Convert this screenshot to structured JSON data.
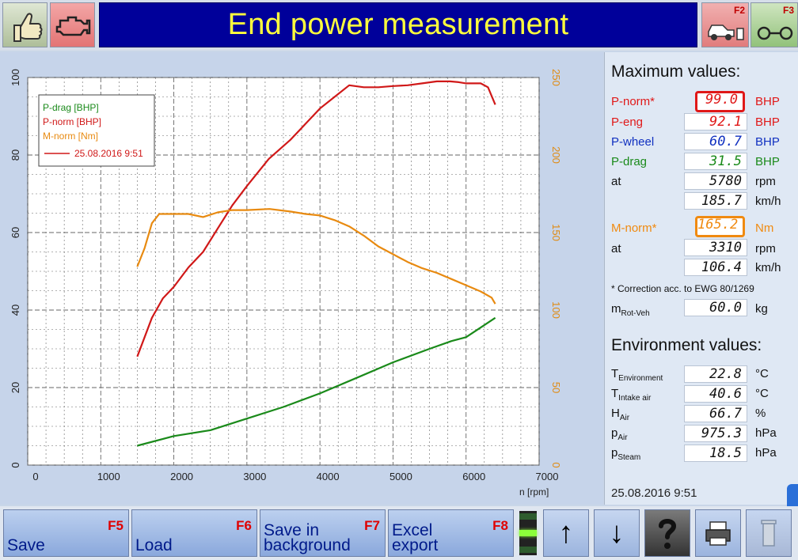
{
  "header": {
    "title": "End power measurement",
    "f2_key": "F2",
    "f3_key": "F3"
  },
  "chart": {
    "xlabel": "n [rpm]",
    "legend_items": [
      {
        "label": "P-drag [BHP]",
        "color": "#1a8a1a"
      },
      {
        "label": "P-norm [BHP]",
        "color": "#d01818"
      },
      {
        "label": "M-norm [Nm]",
        "color": "#e88a10"
      },
      {
        "label": "25.08.2016 9:51",
        "color": "#d01818"
      }
    ]
  },
  "chart_data": {
    "type": "line",
    "xlabel": "n [rpm]",
    "ylabel": "",
    "xlim": [
      0,
      7000
    ],
    "ylim_left": [
      0,
      100
    ],
    "ylim_right": [
      0,
      250
    ],
    "x_ticks": [
      0,
      1000,
      2000,
      3000,
      4000,
      5000,
      6000,
      7000
    ],
    "y_left_ticks": [
      0,
      20,
      40,
      60,
      80,
      100
    ],
    "y_right_ticks": [
      0,
      50,
      100,
      150,
      200,
      250
    ],
    "grid": true,
    "legend_position": "top-left",
    "series": [
      {
        "name": "P-norm [BHP]",
        "axis": "left",
        "color": "#d01818",
        "x": [
          1500,
          1700,
          1850,
          2000,
          2200,
          2400,
          2600,
          2800,
          3000,
          3300,
          3600,
          3800,
          4000,
          4200,
          4400,
          4600,
          4800,
          5000,
          5200,
          5400,
          5600,
          5780,
          5900,
          6000,
          6200,
          6300,
          6400
        ],
        "y": [
          28,
          38,
          43,
          46,
          51,
          55,
          61,
          67,
          72,
          79,
          84,
          88,
          92,
          95,
          98,
          97.5,
          97.5,
          97.8,
          98,
          98.5,
          99,
          99,
          98.8,
          98.5,
          98.5,
          97.5,
          93
        ]
      },
      {
        "name": "M-norm [Nm]",
        "axis": "right",
        "color": "#e88a10",
        "x": [
          1500,
          1600,
          1700,
          1800,
          2000,
          2200,
          2400,
          2600,
          2800,
          3000,
          3310,
          3600,
          3800,
          4000,
          4200,
          4400,
          4600,
          4800,
          5000,
          5200,
          5400,
          5600,
          5800,
          6000,
          6200,
          6350,
          6400
        ],
        "y": [
          128,
          140,
          156,
          162,
          162,
          162,
          160,
          163,
          164.5,
          164.5,
          165.2,
          163.5,
          162,
          161,
          158,
          154,
          148,
          141,
          136,
          131,
          127,
          124,
          120,
          116,
          112,
          108,
          104
        ]
      },
      {
        "name": "P-drag [BHP]",
        "axis": "left",
        "color": "#1a8a1a",
        "x": [
          1500,
          2000,
          2500,
          3000,
          3500,
          4000,
          4500,
          5000,
          5500,
          5800,
          6000,
          6200,
          6400
        ],
        "y": [
          5,
          7.5,
          9,
          12,
          15,
          18.5,
          22.5,
          26.5,
          30,
          32,
          33,
          35.5,
          38
        ]
      }
    ]
  },
  "max_values": {
    "heading": "Maximum values:",
    "rows": [
      {
        "label": "P-norm*",
        "value": "99.0",
        "unit": "BHP",
        "color": "#e01818",
        "value_color": "#e01818"
      },
      {
        "label": "P-eng",
        "value": "92.1",
        "unit": "BHP",
        "color": "#e01818",
        "value_color": "#e01818"
      },
      {
        "label": "P-wheel",
        "value": "60.7",
        "unit": "BHP",
        "color": "#1030c0",
        "value_color": "#1030c0"
      },
      {
        "label": "P-drag",
        "value": "31.5",
        "unit": "BHP",
        "color": "#1a8a1a",
        "value_color": "#1a8a1a"
      },
      {
        "label": "at",
        "value": "5780",
        "unit": "rpm",
        "color": "#111",
        "value_color": "#111"
      },
      {
        "label": "",
        "value": "185.7",
        "unit": "km/h",
        "color": "#111",
        "value_color": "#111"
      }
    ],
    "torque_rows": [
      {
        "label": "M-norm*",
        "value": "165.2",
        "unit": "Nm",
        "color": "#f08a10",
        "value_color": "#f08a10"
      },
      {
        "label": "at",
        "value": "3310",
        "unit": "rpm",
        "color": "#111",
        "value_color": "#111"
      },
      {
        "label": "",
        "value": "106.4",
        "unit": "km/h",
        "color": "#111",
        "value_color": "#111"
      }
    ],
    "note": "* Correction acc. to EWG 80/1269",
    "rot_label": "m",
    "rot_sub": "Rot-Veh",
    "rot_value": "60.0",
    "rot_unit": "kg"
  },
  "env_values": {
    "heading": "Environment values:",
    "rows": [
      {
        "label": "T",
        "sub": "Environment",
        "value": "22.8",
        "unit": "°C"
      },
      {
        "label": "T",
        "sub": "Intake air",
        "value": "40.6",
        "unit": "°C"
      },
      {
        "label": "H",
        "sub": "Air",
        "value": "66.7",
        "unit": "%"
      },
      {
        "label": "p",
        "sub": "Air",
        "value": "975.3",
        "unit": "hPa"
      },
      {
        "label": "p",
        "sub": "Steam",
        "value": "18.5",
        "unit": "hPa"
      }
    ]
  },
  "timestamp": "25.08.2016   9:51",
  "footer": {
    "save": {
      "label": "Save",
      "key": "F5"
    },
    "load": {
      "label": "Load",
      "key": "F6"
    },
    "save_bg": {
      "label": "Save in background",
      "key": "F7"
    },
    "excel": {
      "label": "Excel export",
      "key": "F8"
    }
  },
  "icons": [
    "thumbs-up-icon",
    "engine-icon",
    "car-icon",
    "axle-icon",
    "arrow-up-icon",
    "arrow-down-icon",
    "help-icon",
    "printer-icon",
    "trash-icon"
  ]
}
